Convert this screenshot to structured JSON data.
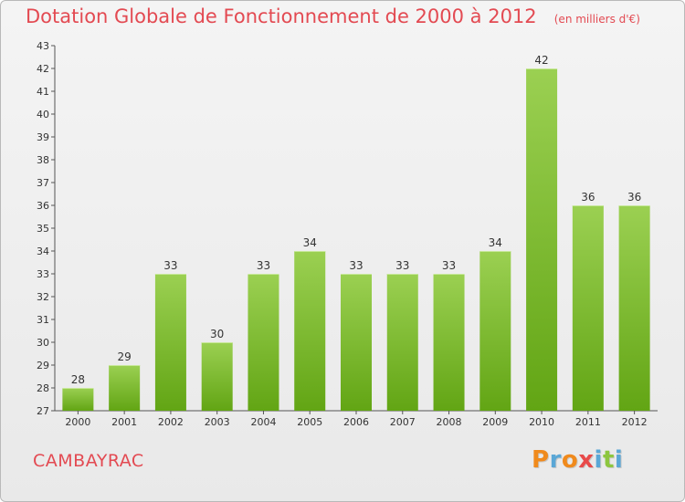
{
  "header": {
    "title": "Dotation Globale de Fonctionnement de 2000 à 2012",
    "unit": "(en milliers d'€)"
  },
  "footer": {
    "commune": "CAMBAYRAC",
    "brand": "Proxiti",
    "brand_letters": [
      "P",
      "r",
      "o",
      "x",
      "i",
      "t",
      "i"
    ],
    "brand_colors": [
      "#f08a1c",
      "#5aa7d6",
      "#f08a1c",
      "#e84a4a",
      "#5aa7d6",
      "#8dc63f",
      "#5aa7d6"
    ]
  },
  "colors": {
    "bar_top": "#9bd052",
    "bar_bottom": "#62a514",
    "text": "#333333",
    "grid": "#cccccc"
  },
  "chart_data": {
    "type": "bar",
    "title": "Dotation Globale de Fonctionnement de 2000 à 2012",
    "subtitle": "(en milliers d'€)",
    "xlabel": "",
    "ylabel": "",
    "categories": [
      "2000",
      "2001",
      "2002",
      "2003",
      "2004",
      "2005",
      "2006",
      "2007",
      "2008",
      "2009",
      "2010",
      "2011",
      "2012"
    ],
    "values": [
      28,
      29,
      33,
      30,
      33,
      34,
      33,
      33,
      33,
      34,
      42,
      36,
      36
    ],
    "ylim": [
      27,
      43
    ],
    "yticks": [
      27,
      28,
      29,
      30,
      31,
      32,
      33,
      34,
      35,
      36,
      37,
      38,
      39,
      40,
      41,
      42,
      43
    ],
    "grid": false,
    "legend": "none"
  }
}
